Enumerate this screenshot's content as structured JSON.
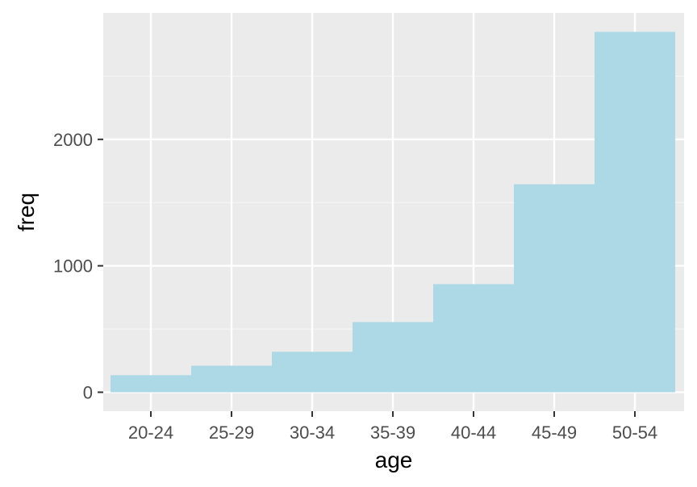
{
  "chart_data": {
    "type": "bar",
    "title": "",
    "xlabel": "age",
    "ylabel": "freq",
    "categories": [
      "20-24",
      "25-29",
      "30-34",
      "35-39",
      "40-44",
      "45-49",
      "50-54"
    ],
    "values": [
      135,
      210,
      320,
      555,
      855,
      1645,
      2850
    ],
    "y_ticks": [
      0,
      1000,
      2000
    ],
    "ylim": [
      -150,
      3000
    ],
    "grid": true,
    "legend": "none",
    "colors": {
      "bar": "#add8e6",
      "panel_background": "#ebebeb",
      "grid_major": "#ffffff",
      "grid_minor": "#f5f5f5",
      "tick_mark": "#333333",
      "tick_label": "#4d4d4d",
      "axis_title": "#000000"
    }
  }
}
